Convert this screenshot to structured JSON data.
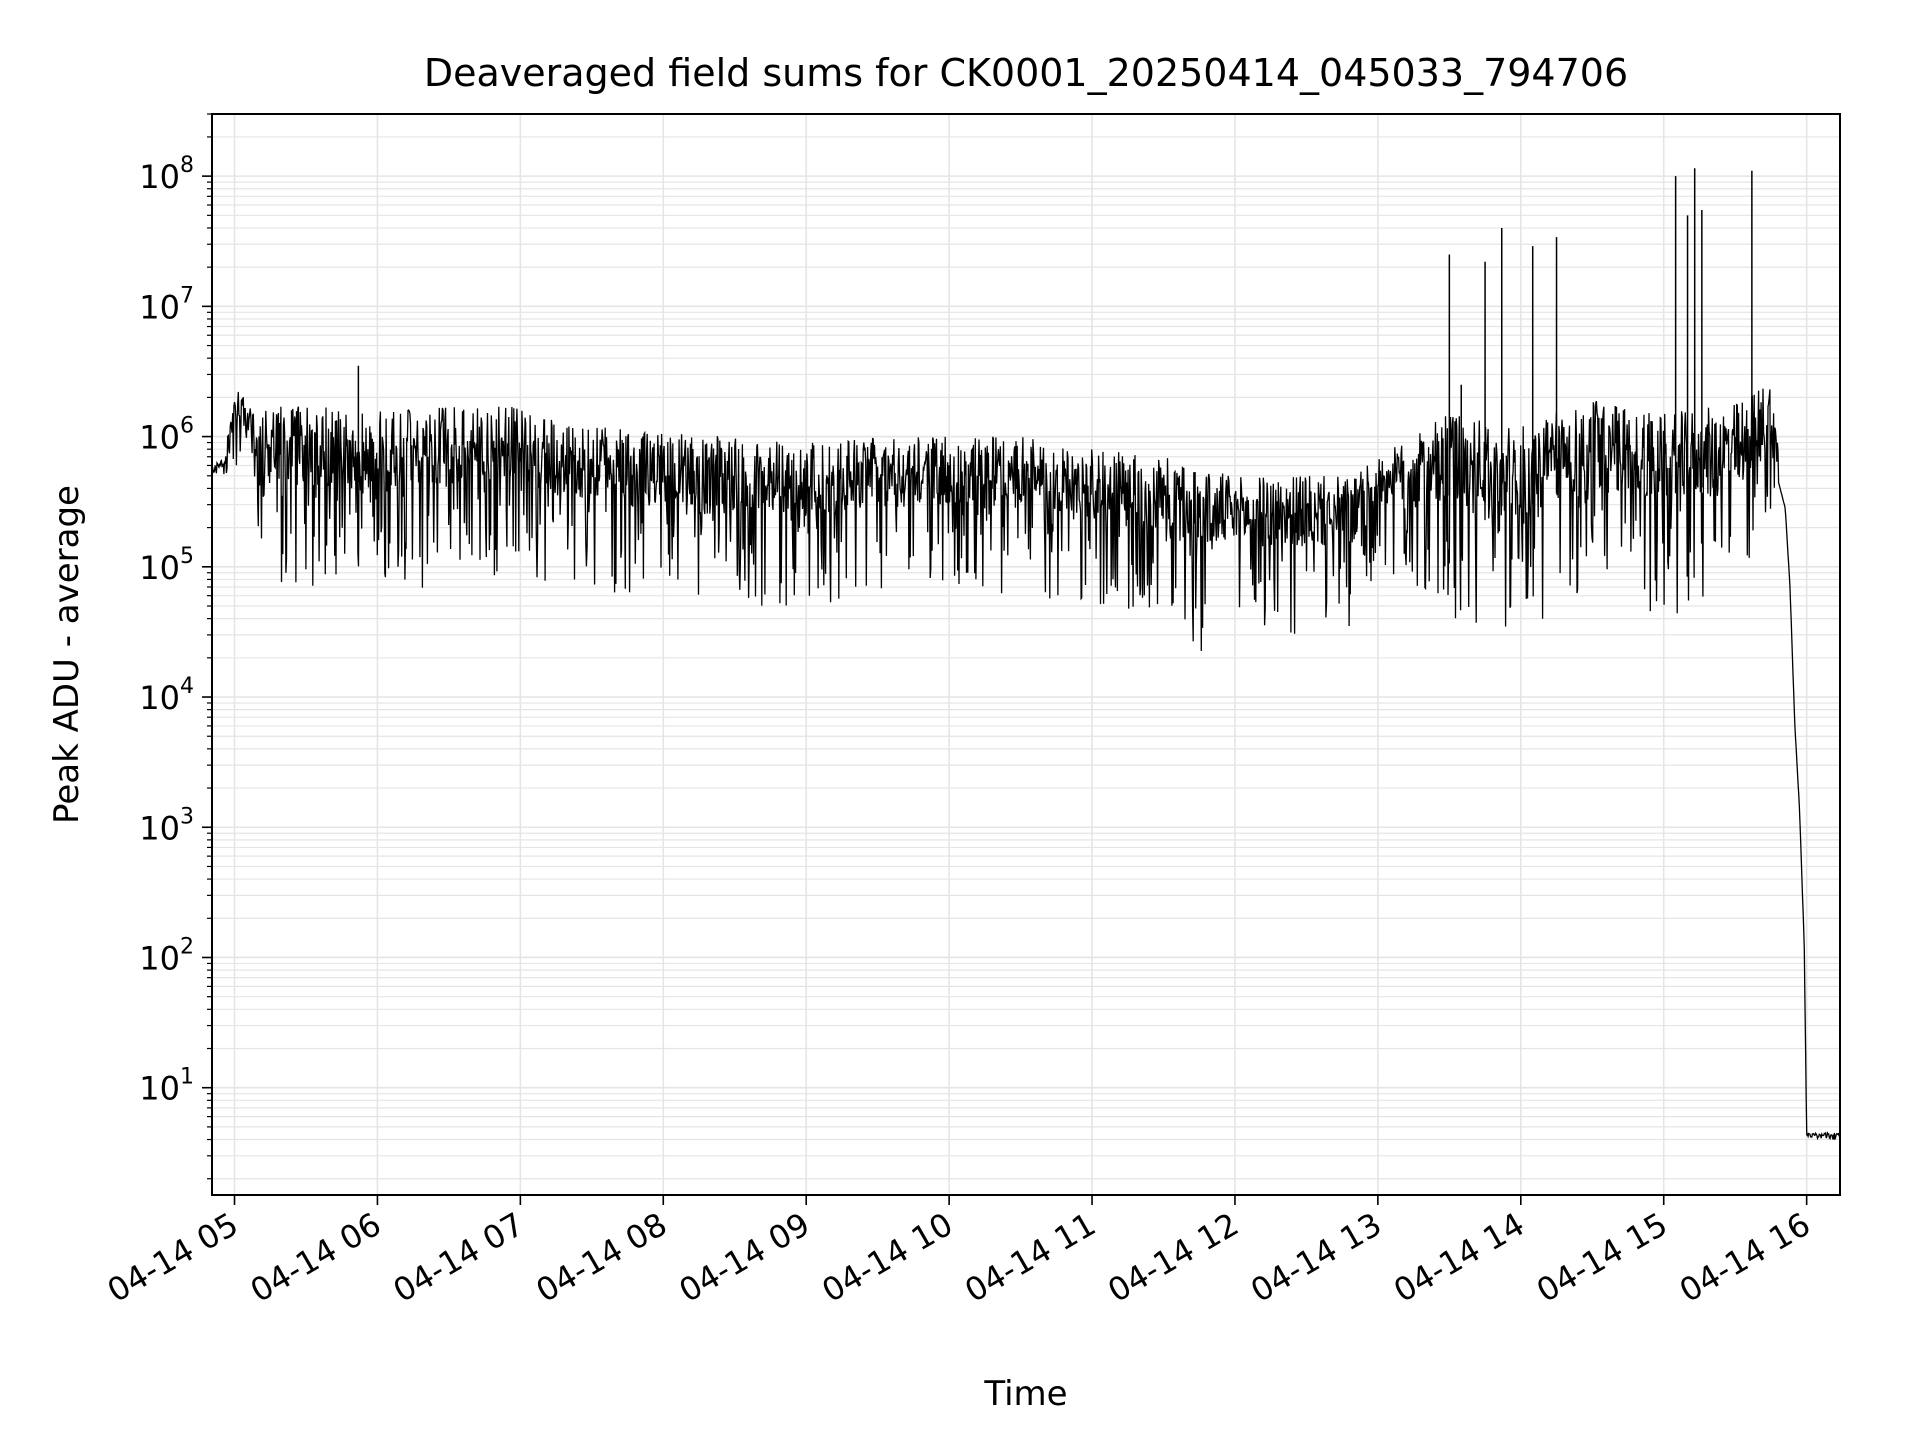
{
  "chart_data": {
    "type": "line",
    "title": "Deaveraged field sums for CK0001_20250414_045033_794706",
    "xlabel": "Time",
    "ylabel": "Peak ADU - average",
    "yscale": "log",
    "grid": true,
    "line_color": "#000000",
    "grid_color": "#e5e5e5",
    "xlim": [
      "2025-04-14 04:50:33",
      "2025-04-14 16:14:00"
    ],
    "ylim": [
      1.5,
      300000000.0
    ],
    "x_ticks": [
      "04-14 05",
      "04-14 06",
      "04-14 07",
      "04-14 08",
      "04-14 09",
      "04-14 10",
      "04-14 11",
      "04-14 12",
      "04-14 13",
      "04-14 14",
      "04-14 15",
      "04-14 16"
    ],
    "y_ticks": [
      {
        "base": "10",
        "exp": "1"
      },
      {
        "base": "10",
        "exp": "2"
      },
      {
        "base": "10",
        "exp": "3"
      },
      {
        "base": "10",
        "exp": "4"
      },
      {
        "base": "10",
        "exp": "5"
      },
      {
        "base": "10",
        "exp": "6"
      },
      {
        "base": "10",
        "exp": "7"
      },
      {
        "base": "10",
        "exp": "8"
      }
    ],
    "series": [
      {
        "style": "dense oscillating trace",
        "envelope": [
          {
            "t": "04:50:33",
            "lo": 450000,
            "hi": 600000
          },
          {
            "t": "04:56:00",
            "lo": 500000,
            "hi": 700000
          },
          {
            "t": "05:00:00",
            "lo": 600000,
            "hi": 2600000
          },
          {
            "t": "05:10:00",
            "lo": 200000,
            "hi": 1500000
          },
          {
            "t": "05:15:00",
            "lo": 70000,
            "hi": 1800000
          },
          {
            "t": "05:40:00",
            "lo": 70000,
            "hi": 1700000
          },
          {
            "t": "06:00:00",
            "lo": 60000,
            "hi": 1600000
          },
          {
            "t": "06:40:00",
            "lo": 80000,
            "hi": 1700000
          },
          {
            "t": "07:00:00",
            "lo": 80000,
            "hi": 1700000
          },
          {
            "t": "07:30:00",
            "lo": 60000,
            "hi": 1200000
          },
          {
            "t": "08:00:00",
            "lo": 50000,
            "hi": 1100000
          },
          {
            "t": "08:30:00",
            "lo": 40000,
            "hi": 1000000
          },
          {
            "t": "09:00:00",
            "lo": 50000,
            "hi": 900000
          },
          {
            "t": "09:30:00",
            "lo": 60000,
            "hi": 1000000
          },
          {
            "t": "10:00:00",
            "lo": 70000,
            "hi": 1000000
          },
          {
            "t": "10:30:00",
            "lo": 60000,
            "hi": 1000000
          },
          {
            "t": "11:00:00",
            "lo": 50000,
            "hi": 800000
          },
          {
            "t": "11:30:00",
            "lo": 40000,
            "hi": 700000
          },
          {
            "t": "11:45:00",
            "lo": 22000,
            "hi": 600000
          },
          {
            "t": "12:00:00",
            "lo": 30000,
            "hi": 500000
          },
          {
            "t": "12:30:00",
            "lo": 30000,
            "hi": 500000
          },
          {
            "t": "12:50:00",
            "lo": 28000,
            "hi": 500000
          },
          {
            "t": "13:00:00",
            "lo": 100000,
            "hi": 700000
          },
          {
            "t": "13:30:00",
            "lo": 40000,
            "hi": 1500000
          },
          {
            "t": "14:00:00",
            "lo": 30000,
            "hi": 1200000
          },
          {
            "t": "14:30:00",
            "lo": 60000,
            "hi": 2000000
          },
          {
            "t": "15:00:00",
            "lo": 40000,
            "hi": 1500000
          },
          {
            "t": "15:30:00",
            "lo": 60000,
            "hi": 1800000
          },
          {
            "t": "15:45:00",
            "lo": 200000,
            "hi": 2800000
          },
          {
            "t": "15:51:00",
            "lo": 200000,
            "hi": 400000
          },
          {
            "t": "15:53:00",
            "lo": 50000,
            "hi": 100000
          },
          {
            "t": "15:55:00",
            "lo": 4000,
            "hi": 10000
          },
          {
            "t": "15:57:00",
            "lo": 1200,
            "hi": 1600
          },
          {
            "t": "15:59:00",
            "lo": 100,
            "hi": 150
          },
          {
            "t": "16:00:00",
            "lo": 4,
            "hi": 4.5
          },
          {
            "t": "16:14:00",
            "lo": 4,
            "hi": 4.5
          }
        ],
        "spikes": [
          {
            "t": "05:52:00",
            "value": 3500000
          },
          {
            "t": "13:30:00",
            "value": 25000000
          },
          {
            "t": "13:35:00",
            "value": 2500000
          },
          {
            "t": "13:45:00",
            "value": 22000000
          },
          {
            "t": "13:52:00",
            "value": 40000000
          },
          {
            "t": "14:05:00",
            "value": 29000000
          },
          {
            "t": "14:15:00",
            "value": 34000000
          },
          {
            "t": "15:05:00",
            "value": 100000000
          },
          {
            "t": "15:10:00",
            "value": 50000000
          },
          {
            "t": "15:13:00",
            "value": 115000000
          },
          {
            "t": "15:16:00",
            "value": 55000000
          },
          {
            "t": "15:37:00",
            "value": 110000000
          }
        ]
      }
    ]
  }
}
